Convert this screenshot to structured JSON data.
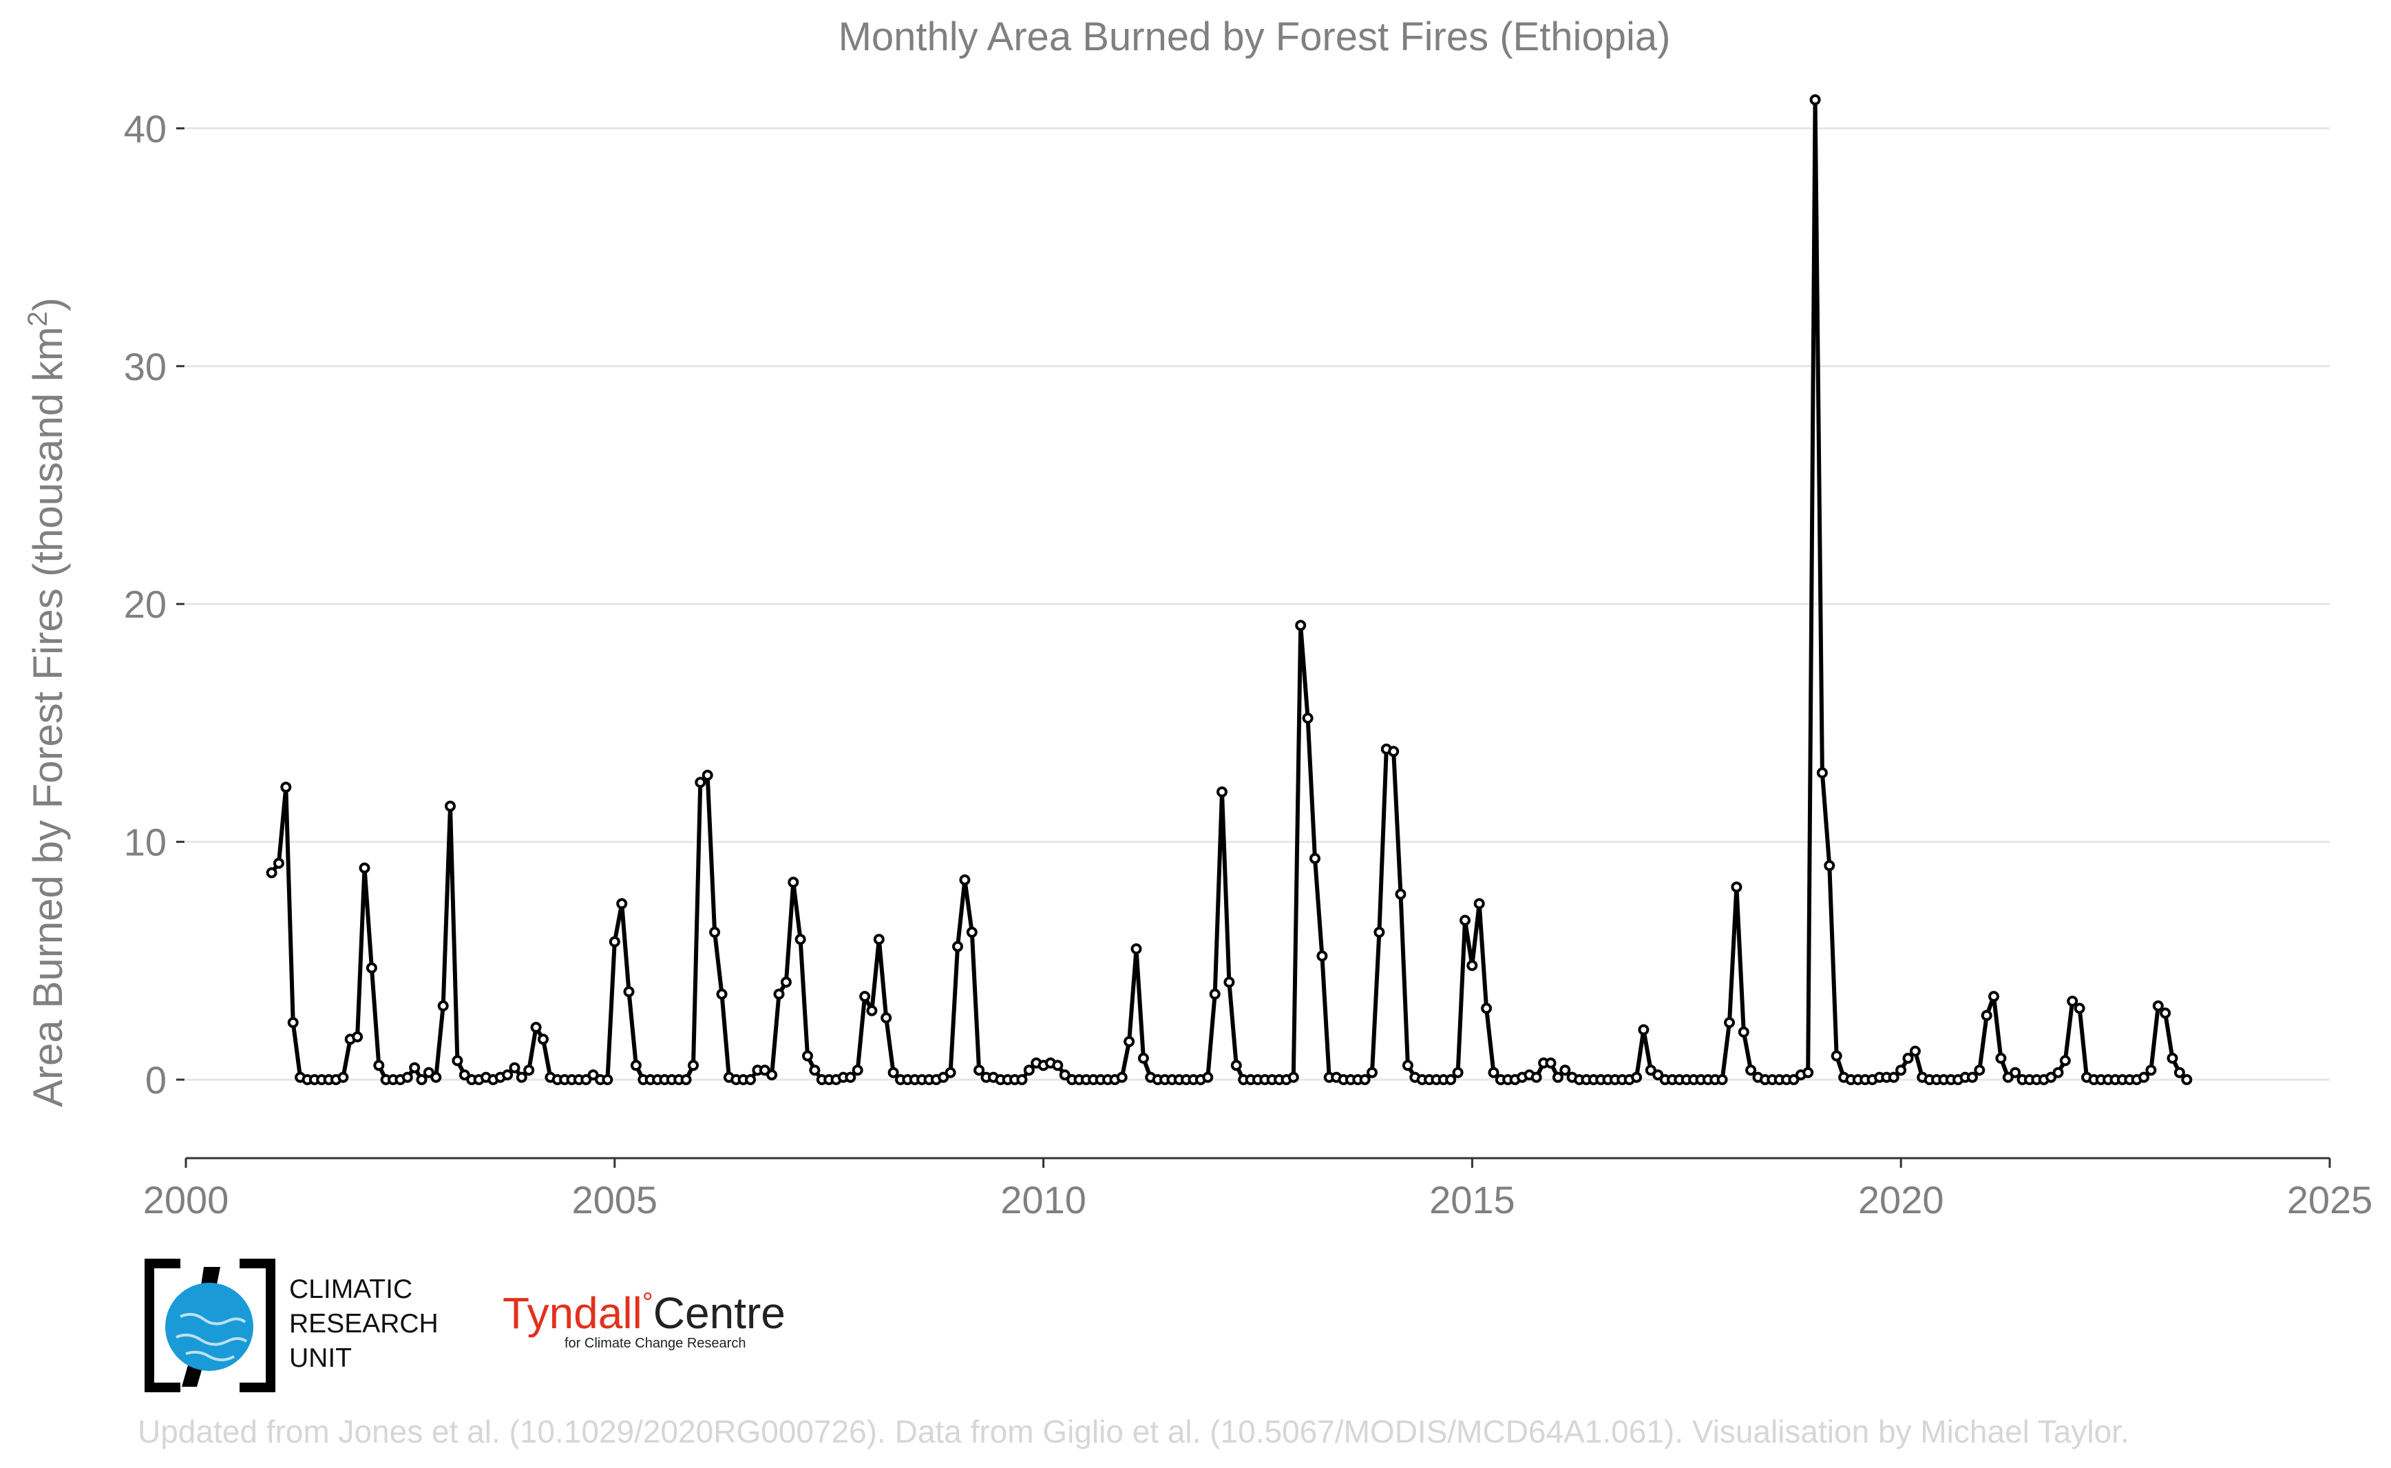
{
  "chart_data": {
    "type": "line",
    "title": "Monthly Area Burned by Forest Fires (Ethiopia)",
    "ylabel_main": "Area Burned by Forest Fires (thousand km",
    "ylabel_sup": "2",
    "ylabel_close": ")",
    "xlabel": "",
    "xlim": [
      2000,
      2025
    ],
    "ylim": [
      -3.3,
      42.5
    ],
    "xticks": [
      2000,
      2005,
      2010,
      2015,
      2020,
      2025
    ],
    "yticks": [
      0,
      10,
      20,
      30,
      40
    ],
    "grid": true,
    "start": 2001.0,
    "step": 0.08333,
    "series": [
      {
        "name": "Ethiopia",
        "values": [
          8.7,
          9.1,
          12.3,
          2.4,
          0.1,
          0.0,
          0.0,
          0.0,
          0.0,
          0.0,
          0.1,
          1.7,
          1.8,
          8.9,
          4.7,
          0.6,
          0.0,
          0.0,
          0.0,
          0.1,
          0.5,
          0.0,
          0.3,
          0.1,
          3.1,
          11.5,
          0.8,
          0.2,
          0.0,
          0.0,
          0.1,
          0.0,
          0.1,
          0.2,
          0.5,
          0.1,
          0.4,
          2.2,
          1.7,
          0.1,
          0.0,
          0.0,
          0.0,
          0.0,
          0.0,
          0.2,
          0.0,
          0.0,
          5.8,
          7.4,
          3.7,
          0.6,
          0.0,
          0.0,
          0.0,
          0.0,
          0.0,
          0.0,
          0.0,
          0.6,
          12.5,
          12.8,
          6.2,
          3.6,
          0.1,
          0.0,
          0.0,
          0.0,
          0.4,
          0.4,
          0.2,
          3.6,
          4.1,
          8.3,
          5.9,
          1.0,
          0.4,
          0.0,
          0.0,
          0.0,
          0.1,
          0.1,
          0.4,
          3.5,
          2.9,
          5.9,
          2.6,
          0.3,
          0.0,
          0.0,
          0.0,
          0.0,
          0.0,
          0.0,
          0.1,
          0.3,
          5.6,
          8.4,
          6.2,
          0.4,
          0.1,
          0.1,
          0.0,
          0.0,
          0.0,
          0.0,
          0.4,
          0.7,
          0.6,
          0.7,
          0.6,
          0.2,
          0.0,
          0.0,
          0.0,
          0.0,
          0.0,
          0.0,
          0.0,
          0.1,
          1.6,
          5.5,
          0.9,
          0.1,
          0.0,
          0.0,
          0.0,
          0.0,
          0.0,
          0.0,
          0.0,
          0.1,
          3.6,
          12.1,
          4.1,
          0.6,
          0.0,
          0.0,
          0.0,
          0.0,
          0.0,
          0.0,
          0.0,
          0.1,
          19.1,
          15.2,
          9.3,
          5.2,
          0.1,
          0.1,
          0.0,
          0.0,
          0.0,
          0.0,
          0.3,
          6.2,
          13.9,
          13.8,
          7.8,
          0.6,
          0.1,
          0.0,
          0.0,
          0.0,
          0.0,
          0.0,
          0.3,
          6.7,
          4.8,
          7.4,
          3.0,
          0.3,
          0.0,
          0.0,
          0.0,
          0.1,
          0.2,
          0.1,
          0.7,
          0.7,
          0.1,
          0.4,
          0.1,
          0.0,
          0.0,
          0.0,
          0.0,
          0.0,
          0.0,
          0.0,
          0.0,
          0.1,
          2.1,
          0.4,
          0.2,
          0.0,
          0.0,
          0.0,
          0.0,
          0.0,
          0.0,
          0.0,
          0.0,
          0.0,
          2.4,
          8.1,
          2.0,
          0.4,
          0.1,
          0.0,
          0.0,
          0.0,
          0.0,
          0.0,
          0.2,
          0.3,
          41.2,
          12.9,
          9.0,
          1.0,
          0.1,
          0.0,
          0.0,
          0.0,
          0.0,
          0.1,
          0.1,
          0.1,
          0.4,
          0.9,
          1.2,
          0.1,
          0.0,
          0.0,
          0.0,
          0.0,
          0.0,
          0.1,
          0.1,
          0.4,
          2.7,
          3.5,
          0.9,
          0.1,
          0.3,
          0.0,
          0.0,
          0.0,
          0.0,
          0.1,
          0.3,
          0.8,
          3.3,
          3.0,
          0.1,
          0.0,
          0.0,
          0.0,
          0.0,
          0.0,
          0.0,
          0.0,
          0.1,
          0.4,
          3.1,
          2.8,
          0.9,
          0.3,
          0.0
        ]
      }
    ]
  },
  "logos": {
    "cru_lines": [
      "CLIMATIC",
      "RESEARCH",
      "UNIT"
    ],
    "tyndall_red": "Tyndall",
    "tyndall_degree": "°",
    "tyndall_dark": "Centre",
    "tyndall_sub": "for Climate Change Research"
  },
  "credit": "Updated from Jones et al. (10.1029/2020RG000726). Data from Giglio et al. (10.5067/MODIS/MCD64A1.061). Visualisation by Michael Taylor.",
  "colors": {
    "line": "#000000",
    "marker_fill": "#ffffff",
    "grid": "#e6e6e6",
    "text": "#808080",
    "cru_blue": "#1a9bd7",
    "tyndall_red": "#e2311d",
    "credit": "#d6d6d6"
  }
}
